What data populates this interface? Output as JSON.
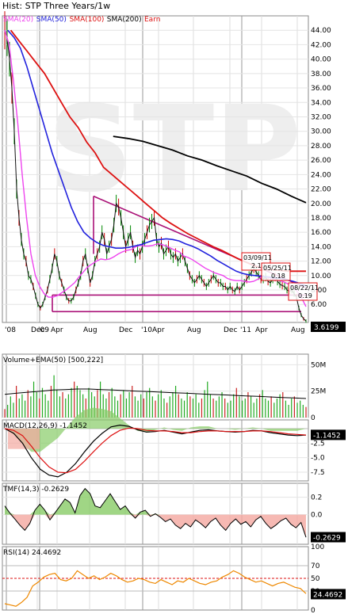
{
  "chart_data": {
    "type": "line",
    "title": "Hist: STP Three Years/1w",
    "legend": [
      {
        "name": "SMA(20)",
        "color": "#ee44ee"
      },
      {
        "name": "SMA(50)",
        "color": "#2222dd"
      },
      {
        "name": "SMA(100)",
        "color": "#dd1111"
      },
      {
        "name": "SMA(200)",
        "color": "#000000"
      },
      {
        "name": "Earn",
        "color": "#dd1111"
      }
    ],
    "watermark": "STP",
    "last_price": "3.6199",
    "x_ticks": [
      "'08",
      "Dec",
      "'09",
      "Apr",
      "Aug",
      "Dec",
      "'10",
      "Apr",
      "Aug",
      "Dec",
      "'11",
      "Apr",
      "Aug"
    ],
    "price_ylim": [
      3.5,
      46
    ],
    "price_yticks": [
      "44.00",
      "42.00",
      "40.00",
      "38.00",
      "36.00",
      "34.00",
      "32.00",
      "30.00",
      "28.00",
      "26.00",
      "24.00",
      "22.00",
      "20.00",
      "18.00",
      "16.00",
      "14.00",
      "12.00",
      "10.00",
      "8.00",
      "6.00"
    ],
    "earnings": [
      {
        "date": "03/09/11",
        "eps": "2.13"
      },
      {
        "date": "05/25/11",
        "eps": "0.18"
      },
      {
        "date": "08/22/11",
        "eps": "0.19"
      }
    ],
    "price_series": {
      "close": [
        44,
        43,
        40,
        36,
        30,
        22,
        18,
        15,
        13,
        12,
        10,
        9.5,
        8.5,
        7.2,
        6,
        5.5,
        6,
        7,
        8,
        9.5,
        11,
        13,
        12,
        10,
        9,
        8,
        7,
        6.5,
        6.5,
        7,
        8,
        9,
        10,
        12,
        13,
        11,
        9,
        10,
        12,
        13,
        14,
        16,
        15,
        13,
        14,
        15,
        17,
        20,
        19.5,
        18,
        16,
        14,
        15,
        16,
        14,
        12.5,
        13.5,
        13,
        14,
        15,
        16,
        17,
        17.5,
        18,
        15,
        14,
        14.5,
        13,
        13.5,
        14,
        13,
        12.5,
        13,
        12,
        12.5,
        13,
        12,
        11,
        10,
        9.5,
        9,
        9.5,
        10,
        9.5,
        9,
        8.5,
        9,
        9.5,
        10,
        9.5,
        9,
        9,
        8.5,
        8.5,
        8,
        8.5,
        8,
        7.8,
        8.5,
        8,
        8.5,
        9,
        9.5,
        10,
        10.5,
        11,
        10.5,
        10,
        9.5,
        9.5,
        9.8,
        9.2,
        9,
        9.5,
        9.8,
        9.2,
        8.8,
        8.6,
        8.5,
        8,
        7.8,
        8,
        7.5,
        7,
        5.5,
        4.5,
        4,
        3.7
      ]
    },
    "sma20": [
      44,
      42,
      37,
      31,
      24,
      18,
      13,
      10,
      8.5,
      7.5,
      7,
      7,
      7.2,
      7.6,
      8,
      8.5,
      9,
      9.8,
      10.5,
      11.2,
      11.6,
      12,
      12.3,
      12.2,
      12.3,
      12.6,
      13,
      13.3,
      13.5,
      13.6,
      14,
      14.2,
      14.1,
      14.1,
      14.2,
      14.4,
      14.3,
      14.1,
      13.8,
      13.5,
      13.3,
      12.7,
      12.5,
      12.2,
      11.8,
      11.4,
      11,
      10.7,
      10.4,
      10.2,
      10,
      9.6,
      9.4,
      9.3,
      9.3,
      9.2,
      9.1,
      9.2,
      9.5,
      9.8,
      9.8,
      9.6,
      9.4,
      9.3,
      9.1,
      8.8,
      8.4,
      7.8,
      6.9,
      5.7
    ],
    "sma50": [
      44,
      43,
      41.5,
      39,
      36,
      33,
      30,
      27,
      24.5,
      22,
      19.5,
      17.5,
      16,
      15.2,
      14.6,
      14.2,
      14,
      13.8,
      13.8,
      13.9,
      14.1,
      14.3,
      14.6,
      14.9,
      15,
      15.1,
      15,
      14.8,
      14.4,
      14.1,
      13.7,
      13.2,
      12.7,
      12.1,
      11.6,
      11.1,
      10.6,
      10.3,
      10.1,
      10,
      9.9,
      9.8,
      9.7,
      9.6,
      9.4,
      9.2,
      8.9,
      8.6
    ],
    "sma100": [
      44,
      42.5,
      41,
      39.5,
      38,
      36,
      34,
      32,
      30.5,
      28.5,
      27,
      25,
      24,
      23,
      22,
      21,
      20,
      19,
      18,
      17.2,
      16.5,
      15.8,
      15.2,
      14.6,
      14,
      13.5,
      12.9,
      12.3,
      11.8,
      11.3,
      11,
      10.8,
      10.7,
      10.6,
      10.6,
      10.6
    ],
    "sma200": [
      29.3,
      29,
      28.6,
      28,
      27.4,
      26.6,
      26,
      25.2,
      24.5,
      23.8,
      22.8,
      22,
      21,
      20.1
    ],
    "volume": {
      "label": "Volume+EMA(50) [500,222]",
      "yticks": [
        "50M",
        "25M",
        "0"
      ],
      "ymax": 60,
      "bars": [
        8,
        12,
        20,
        14,
        30,
        18,
        22,
        16,
        26,
        20,
        34,
        24,
        18,
        28,
        22,
        16,
        30,
        40,
        26,
        20,
        24,
        18,
        22,
        28,
        34,
        30,
        26,
        22,
        18,
        28,
        24,
        20,
        26,
        34,
        22,
        18,
        24,
        28,
        20,
        16,
        22,
        26,
        18,
        24,
        30,
        20,
        16,
        22,
        18,
        24,
        28,
        20,
        16,
        22,
        26,
        18,
        14,
        20,
        24,
        30,
        22,
        18,
        16,
        24,
        20,
        18,
        22,
        14,
        18,
        26,
        34,
        22,
        18,
        16,
        20,
        24,
        18,
        14,
        16,
        22,
        28,
        20,
        16,
        18,
        24,
        20,
        14,
        18,
        22,
        26,
        18,
        16,
        20,
        14,
        18,
        22,
        24,
        16,
        12,
        18,
        20,
        14,
        16,
        12,
        10
      ],
      "ema": [
        22,
        23,
        24,
        25,
        26,
        26.5,
        27,
        27,
        26.5,
        26,
        25.5,
        25,
        24.5,
        24,
        23.5,
        23,
        22.5,
        22,
        21.5,
        21,
        20.5,
        20,
        19.5,
        19,
        18.5,
        18
      ]
    },
    "macd": {
      "label": "MACD(12,26,9) -1.1452",
      "value": "-1.1452",
      "yticks": [
        "-2.5",
        "-5.0",
        "-7.5"
      ],
      "ylim": [
        -9,
        1.5
      ],
      "macd": [
        0,
        -0.8,
        -2.5,
        -5,
        -7,
        -8,
        -8.3,
        -7.5,
        -6,
        -4,
        -2.2,
        -0.8,
        0.3,
        0.6,
        0.4,
        -0.2,
        -0.6,
        -0.5,
        -0.3,
        -0.6,
        -0.9,
        -0.6,
        -0.3,
        -0.2,
        -0.4,
        -0.5,
        -0.6,
        -0.5,
        -0.3,
        -0.4,
        -0.7,
        -0.9,
        -1.1,
        -1.2,
        -1.1
      ],
      "signal": [
        0,
        -0.3,
        -1.2,
        -3,
        -5,
        -6.6,
        -7.5,
        -7.6,
        -7,
        -5.6,
        -4,
        -2.5,
        -1.2,
        -0.3,
        0.1,
        0,
        -0.3,
        -0.4,
        -0.4,
        -0.5,
        -0.7,
        -0.7,
        -0.5,
        -0.4,
        -0.4,
        -0.5,
        -0.5,
        -0.5,
        -0.4,
        -0.4,
        -0.5,
        -0.7,
        -0.9,
        -1,
        -1.1
      ]
    },
    "tmf": {
      "label": "TMF(14,3) -0.2629",
      "value": "-0.2629",
      "yticks": [
        "0.2",
        "0.0"
      ],
      "ylim": [
        -0.34,
        0.36
      ],
      "values": [
        0.1,
        0.02,
        -0.05,
        -0.12,
        -0.18,
        -0.1,
        0.05,
        0.12,
        0.05,
        -0.06,
        0.02,
        0.1,
        0.18,
        0.14,
        0.02,
        0.22,
        0.3,
        0.24,
        0.1,
        0.08,
        0.16,
        0.24,
        0.15,
        0.06,
        0.1,
        0.02,
        -0.04,
        0.03,
        0.05,
        -0.02,
        0.01,
        -0.03,
        -0.08,
        -0.05,
        -0.12,
        -0.16,
        -0.1,
        -0.14,
        -0.06,
        -0.1,
        -0.15,
        -0.08,
        -0.04,
        -0.12,
        -0.18,
        -0.1,
        -0.05,
        -0.11,
        -0.08,
        -0.14,
        -0.06,
        -0.02,
        -0.1,
        -0.16,
        -0.12,
        -0.07,
        -0.04,
        -0.11,
        -0.15,
        -0.09,
        -0.26
      ]
    },
    "rsi": {
      "label": "RSI(14) 24.4692",
      "value": "24.4692",
      "yticks": [
        "100",
        "70",
        "50",
        "30",
        "0"
      ],
      "ylim": [
        0,
        100
      ],
      "values": [
        10,
        8,
        6,
        12,
        20,
        38,
        44,
        52,
        56,
        58,
        48,
        46,
        50,
        62,
        56,
        50,
        54,
        48,
        52,
        58,
        54,
        48,
        44,
        46,
        50,
        48,
        44,
        42,
        48,
        44,
        40,
        46,
        44,
        50,
        46,
        42,
        40,
        44,
        46,
        52,
        56,
        62,
        58,
        52,
        48,
        44,
        46,
        42,
        38,
        42,
        44,
        40,
        36,
        34,
        26
      ]
    }
  }
}
